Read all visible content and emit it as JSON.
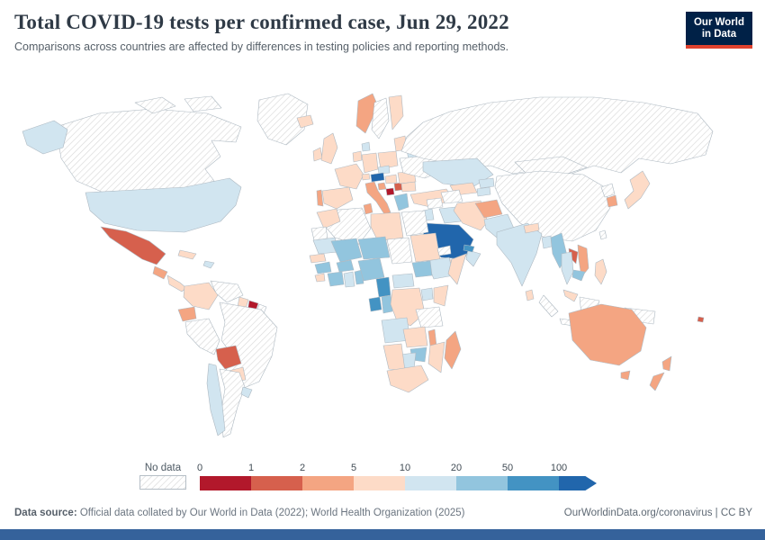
{
  "header": {
    "title": "Total COVID-19 tests per confirmed case, Jun 29, 2022",
    "subtitle": "Comparisons across countries are affected by differences in testing policies and reporting methods.",
    "logo_line1": "Our World",
    "logo_line2": "in Data"
  },
  "footer": {
    "source_label": "Data source:",
    "source_text": " Official data collated by Our World in Data (2022); World Health Organization (2025)",
    "link_text": "OurWorldinData.org/coronavirus | CC BY"
  },
  "colors": {
    "logo_background": "#002147",
    "logo_accent": "#e0422e",
    "bottom_bar": "#35629b",
    "no_data_hatch_line": "#d9d9d9",
    "country_border": "#aeb9c2"
  },
  "chart_data": {
    "type": "heatmap",
    "subtype": "choropleth-world-map",
    "title": "Total COVID-19 tests per confirmed case",
    "date": "Jun 29, 2022",
    "unit": "tests per confirmed case",
    "legend": {
      "no_data_label": "No data",
      "tick_labels": [
        "0",
        "1",
        "2",
        "5",
        "10",
        "20",
        "50",
        "100"
      ],
      "bins": [
        "0-1",
        "1-2",
        "2-5",
        "5-10",
        "10-20",
        "20-50",
        "50-100",
        "100+"
      ],
      "colors": [
        "#b2182b",
        "#d6604d",
        "#f4a582",
        "#fddbc7",
        "#d1e5f0",
        "#92c5de",
        "#4393c3",
        "#2166ac"
      ],
      "no_data_fill": "diagonal-hatch",
      "arrow_end": true
    },
    "countries": {
      "Canada": "no-data",
      "Greenland": "no-data",
      "United States": "10-20",
      "Mexico": "1-2",
      "Guatemala": "2-5",
      "Panama": "5-10",
      "Cuba": "5-10",
      "Dominican Republic": "10-20",
      "Colombia": "5-10",
      "Venezuela": "no-data",
      "Guyana": "5-10",
      "Suriname": "0-1",
      "French Guiana": "no-data",
      "Ecuador": "2-5",
      "Peru": "no-data",
      "Brazil": "no-data",
      "Bolivia": "1-2",
      "Paraguay": "5-10",
      "Chile": "10-20",
      "Argentina": "no-data",
      "Uruguay": "10-20",
      "Iceland": "5-10",
      "Ireland": "5-10",
      "United Kingdom": "5-10",
      "Norway": "2-5",
      "Sweden": "no-data",
      "Finland": "5-10",
      "Denmark": "10-20",
      "Lithuania": "5-10",
      "Belarus": "10-20",
      "Poland": "5-10",
      "Germany": "5-10",
      "Netherlands": "5-10",
      "France": "5-10",
      "Portugal": "2-5",
      "Spain": "5-10",
      "Switzerland": "5-10",
      "Czechia": "10-20",
      "Austria": "100+",
      "Hungary": "5-10",
      "Italy": "2-5",
      "Croatia": "2-5",
      "Bosnia and Herzegovina": "0-1",
      "Serbia": "1-2",
      "Greece": "20-50",
      "Romania": "5-10",
      "Bulgaria": "5-10",
      "Ukraine": "no-data",
      "Turkey": "5-10",
      "Russia": "no-data",
      "Mongolia": "no-data",
      "Kazakhstan": "10-20",
      "Uzbekistan": "5-10",
      "Turkmenistan": "no-data",
      "Kyrgyzstan": "10-20",
      "Tajikistan": "10-20",
      "China": "no-data",
      "North Korea": "no-data",
      "South Korea": "2-5",
      "Japan": "5-10",
      "Taiwan": "no-data",
      "Syria": "no-data",
      "Iraq": "10-20",
      "Iran": "5-10",
      "Jordan": "10-20",
      "Saudi Arabia": "100+",
      "Yemen": "5-10",
      "Oman": "10-20",
      "United Arab Emirates": "50-100",
      "Afghanistan": "2-5",
      "Pakistan": "10-20",
      "India": "10-20",
      "Nepal": "5-10",
      "Bangladesh": "10-20",
      "Sri Lanka": "5-10",
      "Myanmar": "20-50",
      "Laos": "1-2",
      "Vietnam": "2-5",
      "Thailand": "10-20",
      "Cambodia": "20-50",
      "Malaysia": "5-10",
      "Philippines": "5-10",
      "Indonesia": "no-data",
      "Papua New Guinea": "no-data",
      "Fiji": "1-2",
      "Algeria": "no-data",
      "Morocco": "5-10",
      "Western Sahara": "no-data",
      "Tunisia": "2-5",
      "Libya": "5-10",
      "Egypt": "no-data",
      "Mauritania": "10-20",
      "Mali": "20-50",
      "Niger": "20-50",
      "Chad": "no-data",
      "Sudan": "5-10",
      "Eritrea": "no-data",
      "Ethiopia": "10-20",
      "Somalia": "5-10",
      "South Sudan": "20-50",
      "Senegal": "5-10",
      "Guinea": "20-50",
      "Sierra Leone": "5-10",
      "Cote d'Ivoire": "20-50",
      "Burkina Faso": "20-50",
      "Ghana": "10-20",
      "Benin": "20-50",
      "Nigeria": "20-50",
      "Cameroon": "50-100",
      "Central African Republic": "10-20",
      "Gabon": "50-100",
      "Congo": "20-50",
      "Democratic Republic of Congo": "5-10",
      "Uganda": "10-20",
      "Kenya": "5-10",
      "Tanzania": "no-data",
      "Angola": "10-20",
      "Zambia": "5-10",
      "Malawi": "2-5",
      "Mozambique": "5-10",
      "Zimbabwe": "20-50",
      "Botswana": "10-20",
      "Namibia": "5-10",
      "South Africa": "5-10",
      "Madagascar": "2-5",
      "Australia": "2-5",
      "New Zealand": "2-5"
    }
  }
}
